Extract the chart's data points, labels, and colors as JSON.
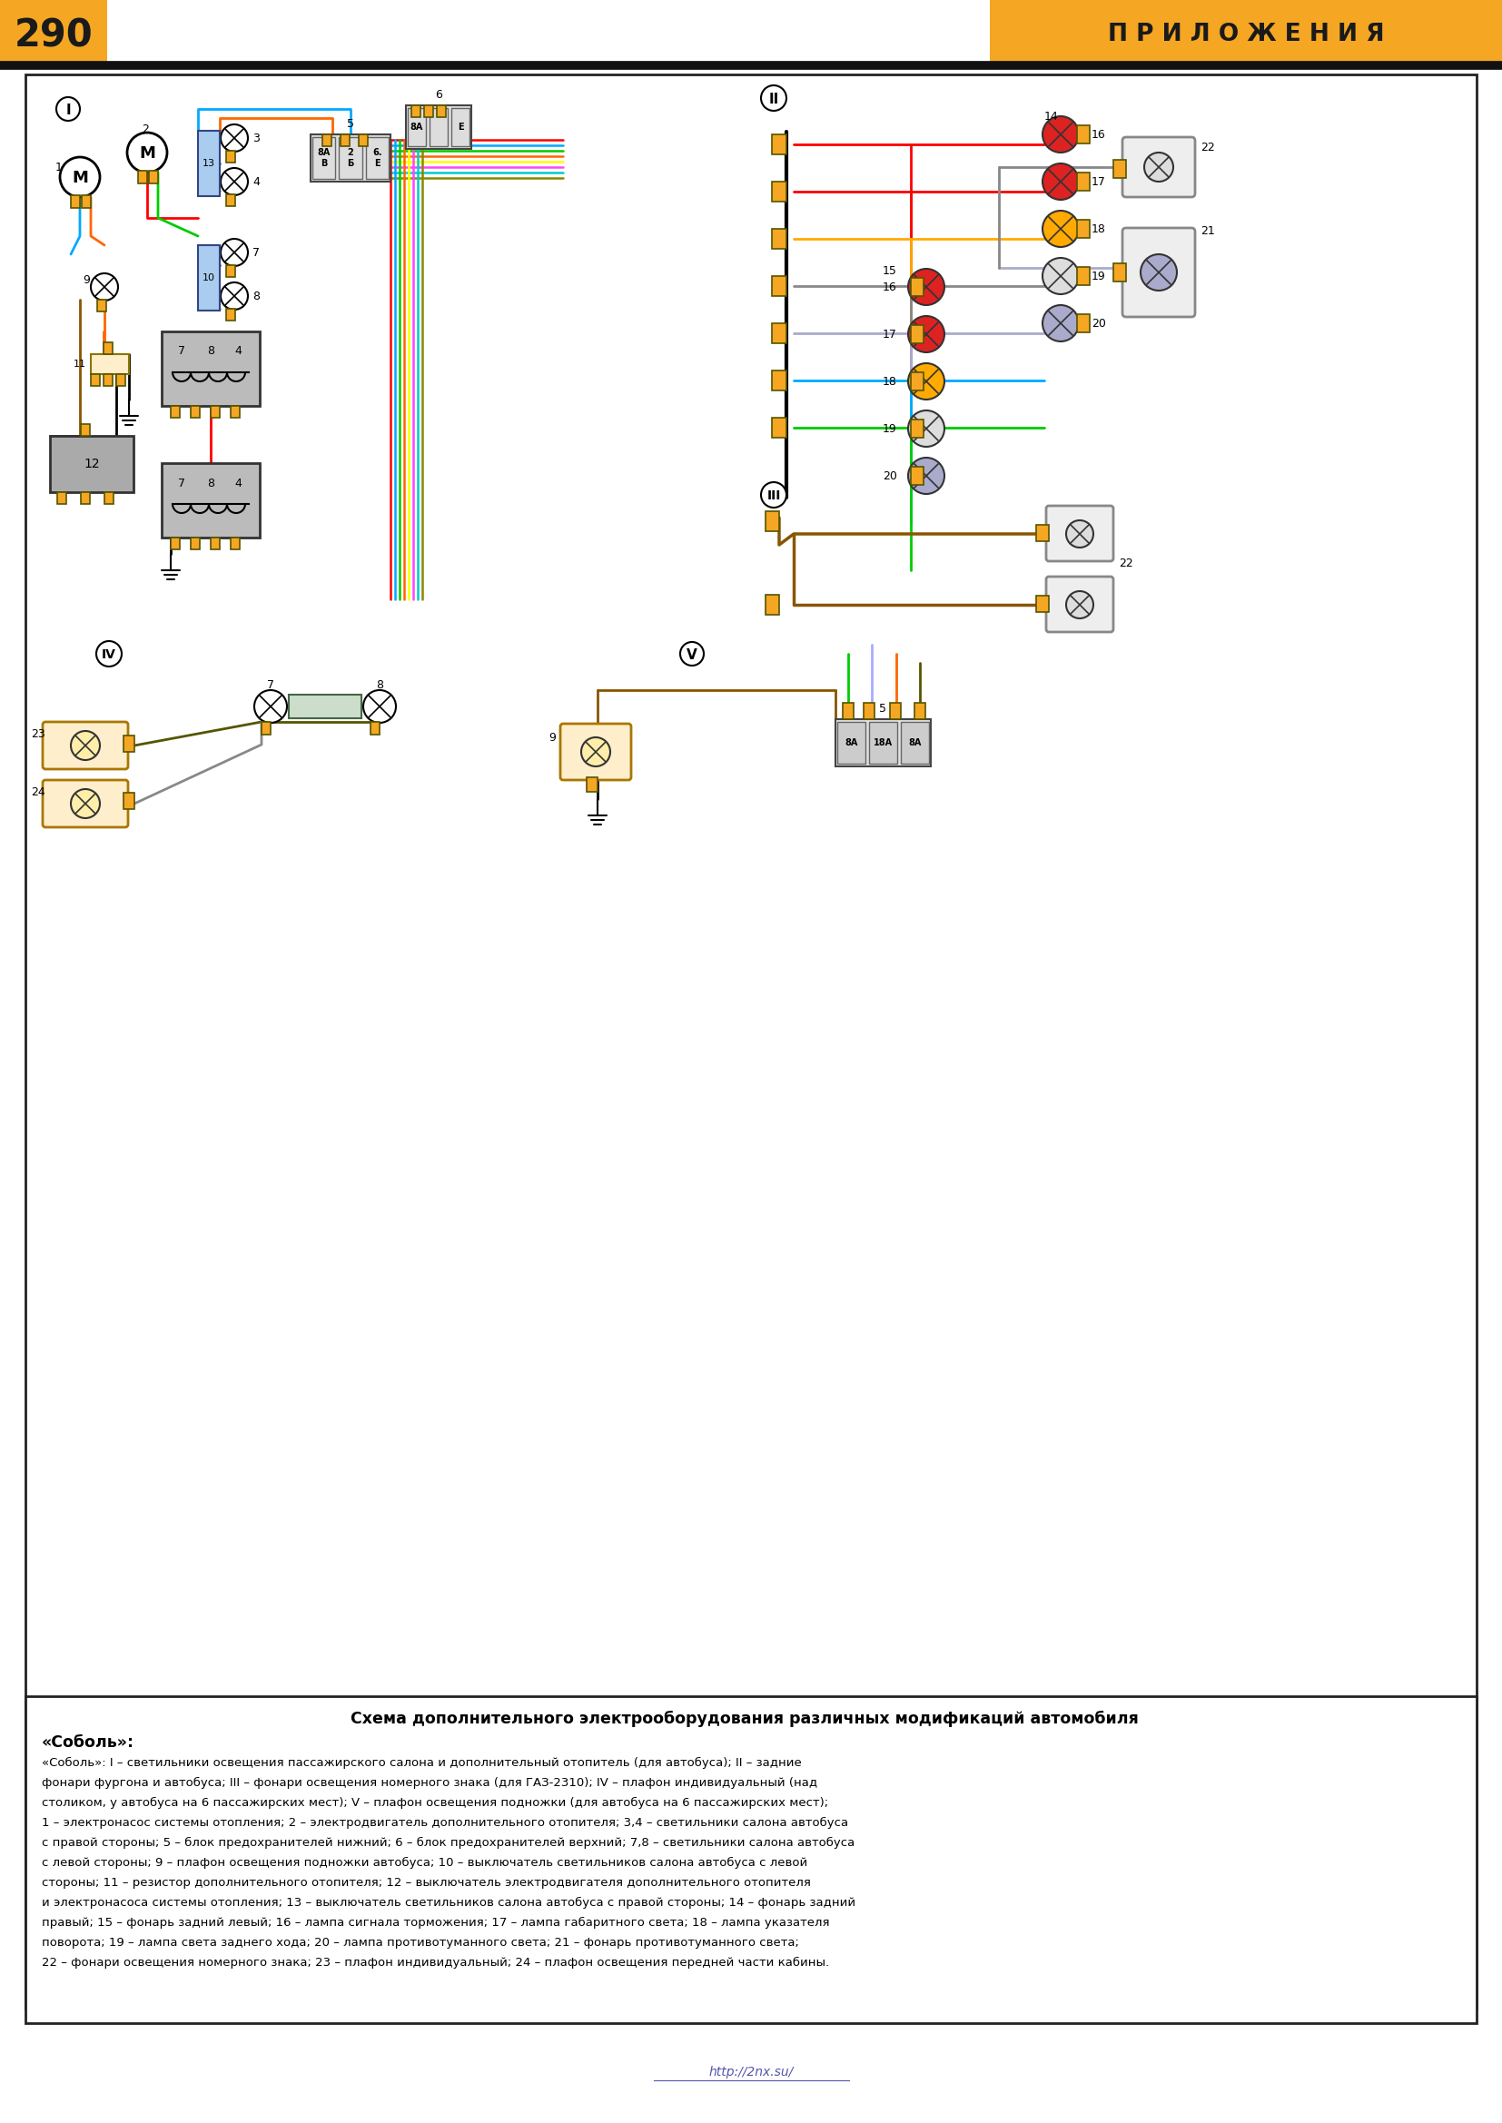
{
  "page_number": "290",
  "header_right": "П Р И Л О Ж Е Н И Я",
  "header_bg": "#F5A623",
  "header_text_color": "#1a1a1a",
  "page_bg": "#FFFFFF",
  "border_color": "#222222",
  "main_title": "Схема дополнительного электрооборудования различных модификаций автомобиля",
  "main_title2": "«Соболь»:",
  "description_lines": [
    "«Соболь»: I – светильники освещения пассажирского салона и дополнительный отопитель (для автобуса); II – задние",
    "фонари фургона и автобуса; III – фонари освещения номерного знака (для ГАЗ-2310); IV – плафон индивидуальный (над",
    "столиком, у автобуса на 6 пассажирских мест); V – плафон освещения подножки (для автобуса на 6 пассажирских мест);",
    "1 – электронасос системы отопления; 2 – электродвигатель дополнительного отопителя; 3,4 – светильники салона автобуса",
    "с правой стороны; 5 – блок предохранителей нижний; 6 – блок предохранителей верхний; 7,8 – светильники салона автобуса",
    "с левой стороны; 9 – плафон освещения подножки автобуса; 10 – выключатель светильников салона автобуса с левой",
    "стороны; 11 – резистор дополнительного отопителя; 12 – выключатель электродвигателя дополнительного отопителя",
    "и электронасоса системы отопления; 13 – выключатель светильников салона автобуса с правой стороны; 14 – фонарь задний",
    "правый; 15 – фонарь задний левый; 16 – лампа сигнала торможения; 17 – лампа габаритного света; 18 – лампа указателя",
    "поворота; 19 – лампа света заднего хода; 20 – лампа противотуманного света; 21 – фонарь противотуманного света;",
    "22 – фонари освещения номерного знака; 23 – плафон индивидуальный; 24 – плафон освещения передней части кабины."
  ],
  "footer_url": "http://2nx.su/"
}
